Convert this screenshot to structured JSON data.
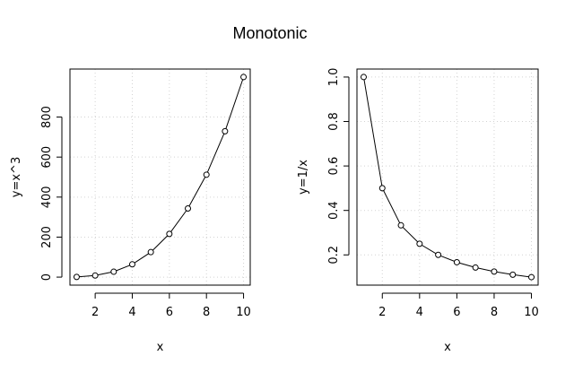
{
  "figure": {
    "title": "Monotonic"
  },
  "chart_data": [
    {
      "type": "line",
      "title": "",
      "xlabel": "x",
      "ylabel": "y=x^3",
      "x": [
        1,
        2,
        3,
        4,
        5,
        6,
        7,
        8,
        9,
        10
      ],
      "values": [
        1,
        8,
        27,
        64,
        125,
        216,
        343,
        512,
        729,
        1000
      ],
      "xlim": [
        0.64,
        10.36
      ],
      "ylim": [
        -40,
        1040
      ],
      "xticks": [
        2,
        4,
        6,
        8,
        10
      ],
      "yticks": [
        0,
        200,
        400,
        600,
        800
      ],
      "ytick_labels": [
        "0",
        "200",
        "400",
        "600",
        "800"
      ],
      "grid": true,
      "markers": "open-circle"
    },
    {
      "type": "line",
      "title": "",
      "xlabel": "x",
      "ylabel": "y=1/x",
      "x": [
        1,
        2,
        3,
        4,
        5,
        6,
        7,
        8,
        9,
        10
      ],
      "values": [
        1.0,
        0.5,
        0.333,
        0.25,
        0.2,
        0.167,
        0.143,
        0.125,
        0.111,
        0.1
      ],
      "xlim": [
        0.64,
        10.36
      ],
      "ylim": [
        0.064,
        1.036
      ],
      "xticks": [
        2,
        4,
        6,
        8,
        10
      ],
      "yticks": [
        0.2,
        0.4,
        0.6,
        0.8,
        1.0
      ],
      "ytick_labels": [
        "0.2",
        "0.4",
        "0.6",
        "0.8",
        "1.0"
      ],
      "grid": true,
      "markers": "open-circle"
    }
  ]
}
